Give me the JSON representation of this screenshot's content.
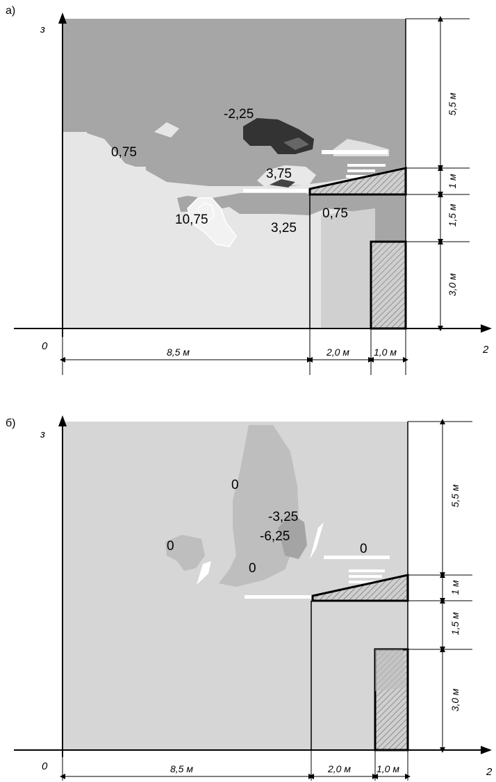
{
  "colors": {
    "contour_dark": "#2e2e2e",
    "contour_mid_dark": "#5a5a5a",
    "contour_mid": "#9a9a9a",
    "contour_light": "#d9d9d9",
    "contour_white": "#ffffff",
    "panel_b_fill": "#d4d4d4",
    "panel_b_zone": "#bdbdbd"
  },
  "panel_a": {
    "label": "а)",
    "axis_vertical": "з",
    "axis_horizontal": "2",
    "origin": "0",
    "dims_horizontal": [
      "8,5 м",
      "2,0 м",
      "1,0 м"
    ],
    "dims_vertical": [
      "5,5 м",
      "1 м",
      "1,5 м",
      "3,0 м"
    ],
    "contour_labels": [
      "-2,25",
      "0,75",
      "3,75",
      "10,75",
      "0,75",
      "3,25"
    ]
  },
  "panel_b": {
    "label": "б)",
    "axis_vertical": "з",
    "axis_horizontal": "2",
    "origin": "0",
    "dims_horizontal": [
      "8,5 м",
      "2,0 м",
      "1,0 м"
    ],
    "dims_vertical": [
      "5,5 м",
      "1 м",
      "1,5 м",
      "3,0 м"
    ],
    "contour_labels": [
      "0",
      "-3,25",
      "-6,25",
      "0",
      "0",
      "0"
    ]
  }
}
